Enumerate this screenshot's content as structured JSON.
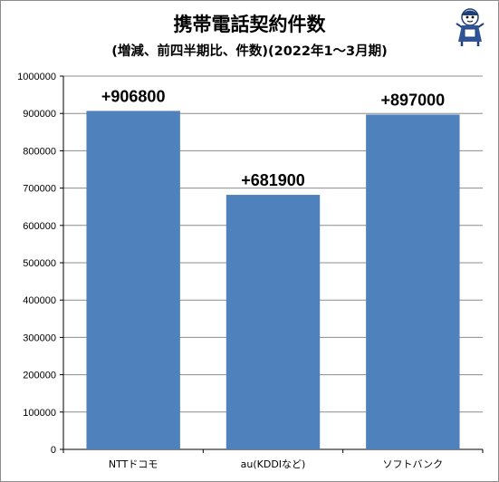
{
  "chart_data": {
    "type": "bar",
    "title": "携帯電話契約件数",
    "subtitle": "(増減、前四半期比、件数)(2022年1～3月期)",
    "categories": [
      "NTTドコモ",
      "au(KDDIなど)",
      "ソフトバンク"
    ],
    "values": [
      906800,
      681900,
      897000
    ],
    "data_labels": [
      "+906800",
      "+681900",
      "+897000"
    ],
    "ylim": [
      0,
      1000000
    ],
    "yticks": [
      0,
      100000,
      200000,
      300000,
      400000,
      500000,
      600000,
      700000,
      800000,
      900000,
      1000000
    ],
    "ytick_labels": [
      "0",
      "100000",
      "200000",
      "300000",
      "400000",
      "500000",
      "600000",
      "700000",
      "800000",
      "900000",
      "1000000"
    ],
    "grid": true,
    "legend": false,
    "bar_color": "#4f81bd",
    "grid_color": "#8c8c8c"
  },
  "mascot": {
    "icon": "mascot-character-icon"
  }
}
